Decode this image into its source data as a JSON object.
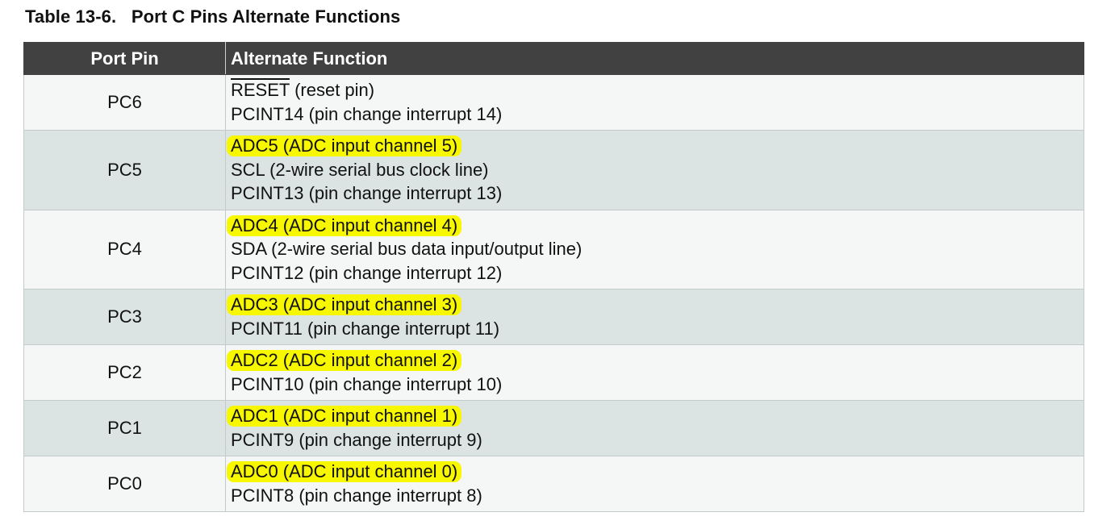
{
  "caption": "Table 13-6.   Port C Pins Alternate Functions",
  "headers": {
    "port_pin": "Port Pin",
    "alternate_function": "Alternate Function"
  },
  "rows": [
    {
      "pin": "PC6",
      "functions": [
        {
          "signal": "RESET",
          "desc": " (reset pin)",
          "overline": true
        },
        {
          "text": "PCINT14 (pin change interrupt 14)"
        }
      ]
    },
    {
      "pin": "PC5",
      "functions": [
        {
          "text": "ADC5 (ADC input channel 5)",
          "highlighted": true
        },
        {
          "text": "SCL (2-wire serial bus clock line)"
        },
        {
          "text": "PCINT13 (pin change interrupt 13)"
        }
      ]
    },
    {
      "pin": "PC4",
      "functions": [
        {
          "text": "ADC4 (ADC input channel 4)",
          "highlighted": true
        },
        {
          "text": "SDA (2-wire serial bus data input/output line)"
        },
        {
          "text": "PCINT12 (pin change interrupt 12)"
        }
      ]
    },
    {
      "pin": "PC3",
      "functions": [
        {
          "text": "ADC3 (ADC input channel 3)",
          "highlighted": true
        },
        {
          "text": "PCINT11 (pin change interrupt 11)"
        }
      ]
    },
    {
      "pin": "PC2",
      "functions": [
        {
          "text": "ADC2 (ADC input channel 2)",
          "highlighted": true
        },
        {
          "text": "PCINT10 (pin change interrupt 10)"
        }
      ]
    },
    {
      "pin": "PC1",
      "functions": [
        {
          "text": "ADC1 (ADC input channel 1)",
          "highlighted": true
        },
        {
          "text": "PCINT9 (pin change interrupt 9)"
        }
      ]
    },
    {
      "pin": "PC0",
      "functions": [
        {
          "text": "ADC0 (ADC input channel 0)",
          "highlighted": true
        },
        {
          "text": "PCINT8 (pin change interrupt 8)"
        }
      ]
    }
  ],
  "colors": {
    "header_bg": "#414141",
    "row_light": "#f5f7f7",
    "row_dark": "#dbe3e3",
    "highlight": "#f7f700"
  }
}
